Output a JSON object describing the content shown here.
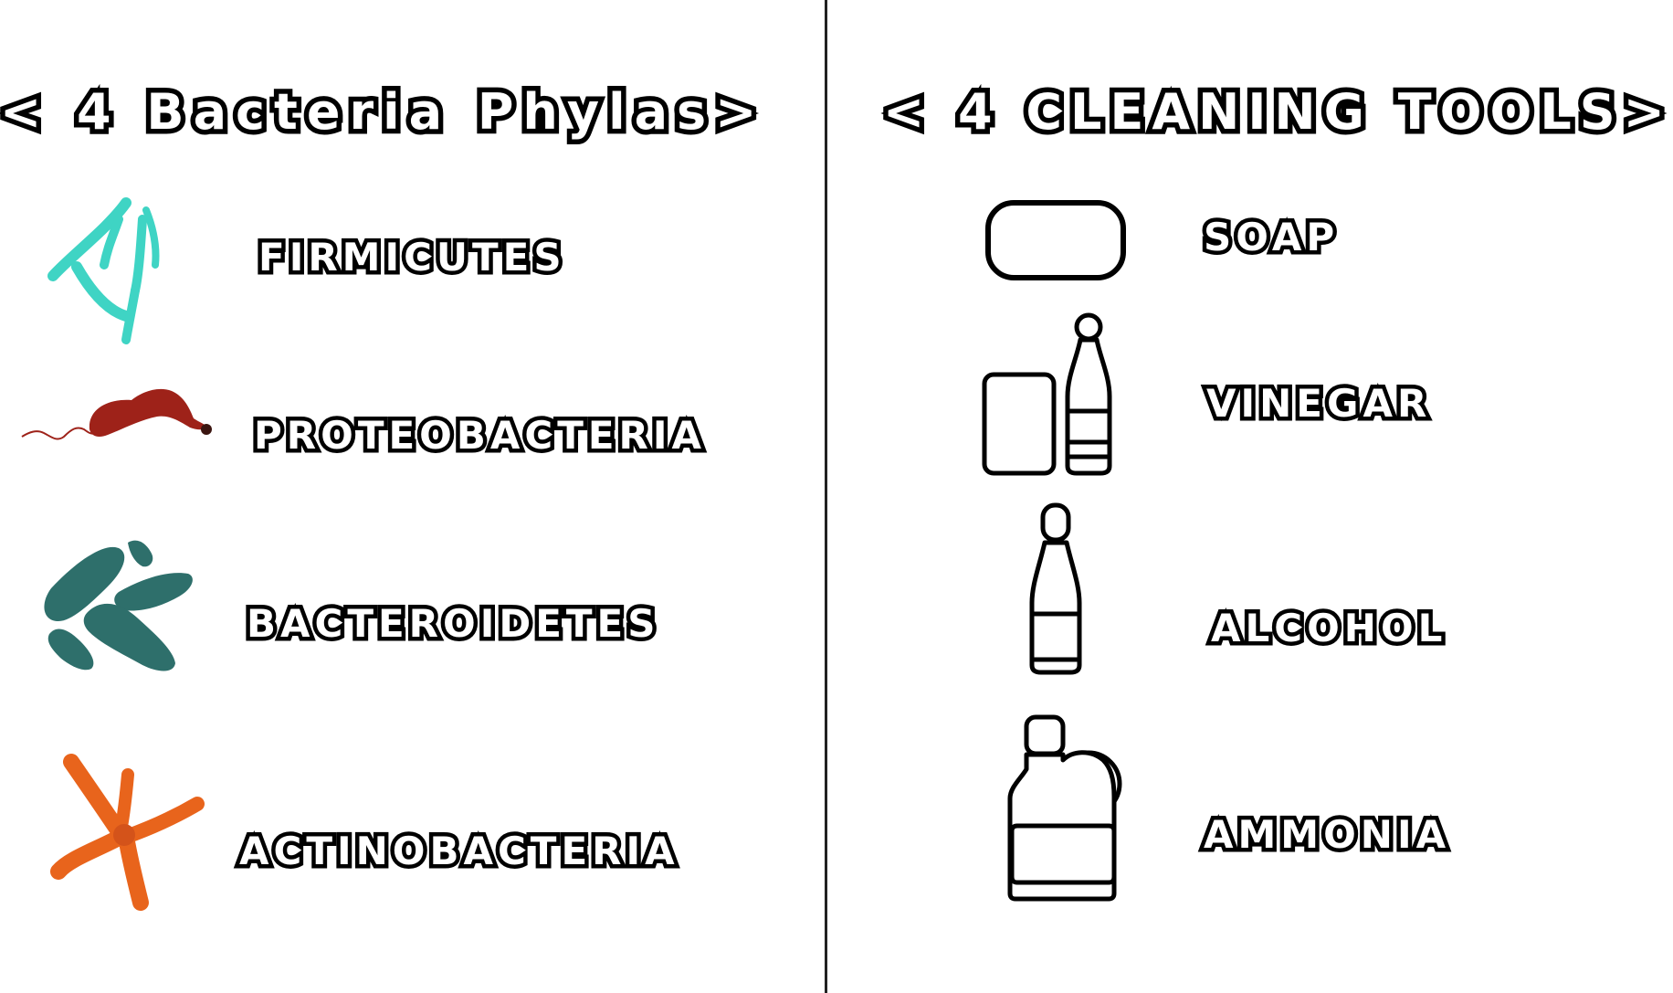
{
  "left_panel": {
    "title": "< 4 Bacteria Phylas>",
    "items": [
      {
        "label": "FIRMICUTES",
        "icon": "firmicutes-bacteria-icon",
        "color": "#3fd4c4"
      },
      {
        "label": "PROTEOBACTERIA",
        "icon": "proteobacteria-bacteria-icon",
        "color": "#9e2219"
      },
      {
        "label": "BACTEROIDETES",
        "icon": "bacteroidetes-bacteria-icon",
        "color": "#2e6f6b"
      },
      {
        "label": "ACTINOBACTERIA",
        "icon": "actinobacteria-bacteria-icon",
        "color": "#e8641c"
      }
    ]
  },
  "right_panel": {
    "title": "< 4 CLEANING TOOLS>",
    "items": [
      {
        "label": "SOAP",
        "icon": "soap-bar-icon"
      },
      {
        "label": "VINEGAR",
        "icon": "vinegar-bottle-icon"
      },
      {
        "label": "ALCOHOL",
        "icon": "alcohol-bottle-icon"
      },
      {
        "label": "AMMONIA",
        "icon": "ammonia-jug-icon"
      }
    ]
  },
  "colors": {
    "outline": "#000000",
    "divider": "#222222",
    "background": "#ffffff"
  }
}
